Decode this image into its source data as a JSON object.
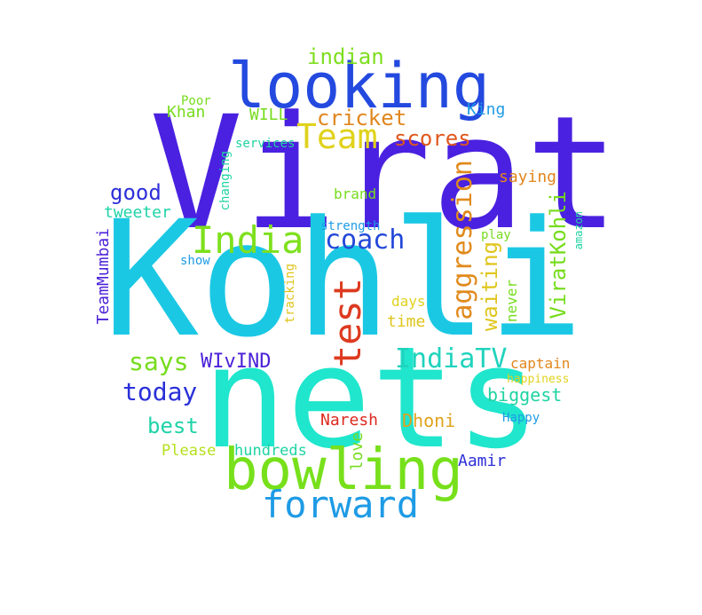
{
  "word_cloud": {
    "words": [
      {
        "id": "virat",
        "text": "Virat",
        "color": "#4a21e0"
      },
      {
        "id": "kohli",
        "text": "Kohli",
        "color": "#1bc8e4"
      },
      {
        "id": "nets",
        "text": "nets",
        "color": "#1fe6cd"
      },
      {
        "id": "looking",
        "text": "looking",
        "color": "#2349df"
      },
      {
        "id": "bowling",
        "text": "bowling",
        "color": "#77e01b"
      },
      {
        "id": "forward",
        "text": "forward",
        "color": "#1e9be5"
      },
      {
        "id": "team",
        "text": "Team",
        "color": "#e0d21c"
      },
      {
        "id": "india",
        "text": "India",
        "color": "#7ee01d"
      },
      {
        "id": "test",
        "text": "test",
        "color": "#dd3a1f"
      },
      {
        "id": "aggression",
        "text": "aggression",
        "color": "#e08a1c"
      },
      {
        "id": "indiatv",
        "text": "IndiaTV",
        "color": "#1fd3bd"
      },
      {
        "id": "coach",
        "text": "coach",
        "color": "#2348d8"
      },
      {
        "id": "today",
        "text": "today",
        "color": "#2a2fd8"
      },
      {
        "id": "says",
        "text": "says",
        "color": "#76dc1d"
      },
      {
        "id": "cricket",
        "text": "cricket",
        "color": "#e0861d"
      },
      {
        "id": "scores",
        "text": "scores",
        "color": "#e0581d"
      },
      {
        "id": "indian",
        "text": "indian",
        "color": "#7ede1d"
      },
      {
        "id": "waiting",
        "text": "waiting",
        "color": "#e0c51c"
      },
      {
        "id": "viratkohli",
        "text": "ViratKohli",
        "color": "#76dc1d"
      },
      {
        "id": "good",
        "text": "good",
        "color": "#2d2fd8"
      },
      {
        "id": "best",
        "text": "best",
        "color": "#1fd3a7"
      },
      {
        "id": "wivind",
        "text": "WIvIND",
        "color": "#4b22d8"
      },
      {
        "id": "biggest",
        "text": "biggest",
        "color": "#1fd3a2"
      },
      {
        "id": "tweeter",
        "text": "tweeter",
        "color": "#1fd3a7"
      },
      {
        "id": "saying",
        "text": "saying",
        "color": "#e0861d"
      },
      {
        "id": "king",
        "text": "King",
        "color": "#1e9be5"
      },
      {
        "id": "khan",
        "text": "Khan",
        "color": "#76dc1d"
      },
      {
        "id": "will",
        "text": "WILL",
        "color": "#76dc1d"
      },
      {
        "id": "poor",
        "text": "Poor",
        "color": "#76dc1d"
      },
      {
        "id": "services",
        "text": "services",
        "color": "#1fd3a2"
      },
      {
        "id": "changing",
        "text": "changing",
        "color": "#1fd3a2"
      },
      {
        "id": "brand",
        "text": "brand",
        "color": "#76dc1d"
      },
      {
        "id": "strength",
        "text": "strength",
        "color": "#1e9be5"
      },
      {
        "id": "play",
        "text": "play",
        "color": "#76dc1d"
      },
      {
        "id": "amazon",
        "text": "amazon",
        "color": "#1fd3a2"
      },
      {
        "id": "show",
        "text": "show",
        "color": "#1e9be5"
      },
      {
        "id": "teammumbai",
        "text": "TeamMumbai",
        "color": "#4b22d8"
      },
      {
        "id": "tracking",
        "text": "tracking",
        "color": "#e0c51c"
      },
      {
        "id": "days",
        "text": "days",
        "color": "#e0d21c"
      },
      {
        "id": "time",
        "text": "time",
        "color": "#e0c51c"
      },
      {
        "id": "never",
        "text": "never",
        "color": "#76dc1d"
      },
      {
        "id": "captain",
        "text": "captain",
        "color": "#e0861d"
      },
      {
        "id": "happiness",
        "text": "happiness",
        "color": "#e0d21c"
      },
      {
        "id": "naresh",
        "text": "Naresh",
        "color": "#dd2a1f"
      },
      {
        "id": "dhoni",
        "text": "Dhoni",
        "color": "#e0a21c"
      },
      {
        "id": "happy",
        "text": "Happy",
        "color": "#1e9be5"
      },
      {
        "id": "please",
        "text": "Please",
        "color": "#b4e01c"
      },
      {
        "id": "hundreds",
        "text": "hundreds",
        "color": "#1fd3a2"
      },
      {
        "id": "love",
        "text": "love",
        "color": "#76dc1d"
      },
      {
        "id": "aamir",
        "text": "Aamir",
        "color": "#2d2fd8"
      }
    ]
  }
}
